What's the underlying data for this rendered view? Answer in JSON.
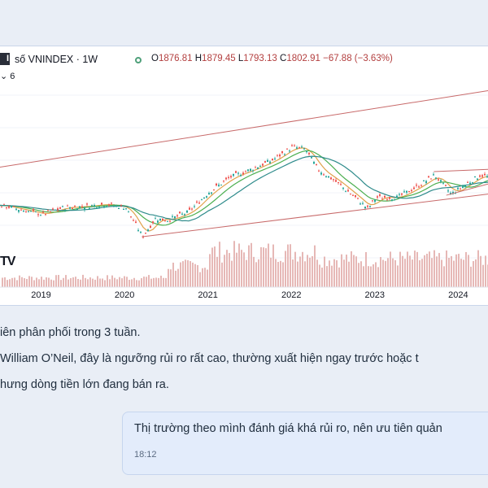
{
  "chart": {
    "logo_char": "I",
    "symbol_title": "số VNINDEX · 1W",
    "ohlc": {
      "o_label": "O",
      "o": "1876.81",
      "h_label": "H",
      "h": "1879.45",
      "l_label": "L",
      "l": "1793.13",
      "c_label": "C",
      "c": "1802.91",
      "change": "−67.88 (−3.63%)"
    },
    "indicator_toggle": "6",
    "watermark": "TV",
    "status_color": "#4fa07a",
    "colors": {
      "up": "#26a69a",
      "down": "#ef5350",
      "ma_fast": "#e0a24a",
      "ma_mid": "#4caf50",
      "ma_slow": "#2e8b8b",
      "channel": "#c86a6a",
      "volume": "#e6b8b6"
    }
  },
  "chart_data": {
    "type": "line",
    "title": "số VNINDEX · 1W",
    "x_ticks": [
      "2019",
      "2020",
      "2021",
      "2022",
      "2023",
      "2024"
    ],
    "x": [
      2018.5,
      2018.75,
      2019.0,
      2019.25,
      2019.5,
      2019.75,
      2020.0,
      2020.2,
      2020.35,
      2020.5,
      2020.75,
      2021.0,
      2021.25,
      2021.5,
      2021.75,
      2022.0,
      2022.15,
      2022.3,
      2022.5,
      2022.75,
      2022.9,
      2023.0,
      2023.25,
      2023.5,
      2023.7,
      2023.9,
      2024.0,
      2024.25,
      2024.35
    ],
    "series": [
      {
        "values": [
          980,
          940,
          900,
          960,
          970,
          990,
          960,
          700,
          860,
          850,
          920,
          1100,
          1230,
          1300,
          1380,
          1500,
          1480,
          1300,
          1200,
          1050,
          950,
          1050,
          1050,
          1150,
          1250,
          1080,
          1130,
          1250,
          1230
        ]
      }
    ],
    "ylim": [
      600,
      1700
    ]
  },
  "messages": {
    "incoming": [
      "iên phân phối trong 3 tuần.",
      " William O’Neil, đây là ngưỡng rủi ro rất cao, thường xuất hiện ngay trước hoặc t",
      "hưng dòng tiền lớn đang bán ra."
    ],
    "outgoing": {
      "text": "Thị trường theo mình đánh giá khá rủi ro, nên ưu tiên quản",
      "time": "18:12"
    }
  }
}
